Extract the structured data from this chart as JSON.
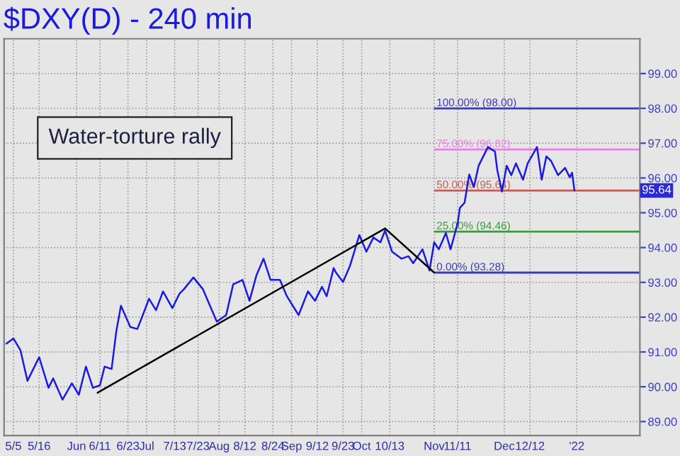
{
  "chart_data": {
    "type": "line",
    "title": "$DXY(D) - 240 min",
    "annotations": [
      "Water-torture rally",
      "95.64"
    ],
    "series": [
      {
        "color": "#1a1ae0",
        "x": [
          "2021-05-02",
          "2021-05-05",
          "2021-05-08",
          "2021-05-11",
          "2021-05-16",
          "2021-05-20",
          "2021-05-22",
          "2021-05-26",
          "2021-05-30",
          "2021-06-02",
          "2021-06-05",
          "2021-06-08",
          "2021-06-11",
          "2021-06-13",
          "2021-06-16",
          "2021-06-18",
          "2021-06-20",
          "2021-06-24",
          "2021-06-27",
          "2021-06-29",
          "2021-07-02",
          "2021-07-05",
          "2021-07-08",
          "2021-07-12",
          "2021-07-15",
          "2021-07-17",
          "2021-07-21",
          "2021-07-25",
          "2021-07-31",
          "2021-08-04",
          "2021-08-07",
          "2021-08-11",
          "2021-08-14",
          "2021-08-17",
          "2021-08-20",
          "2021-08-23",
          "2021-08-27",
          "2021-08-30",
          "2021-09-04",
          "2021-09-08",
          "2021-09-11",
          "2021-09-14",
          "2021-09-16",
          "2021-09-19",
          "2021-09-20",
          "2021-09-23",
          "2021-09-26",
          "2021-09-30",
          "2021-10-03",
          "2021-10-06",
          "2021-10-09",
          "2021-10-11",
          "2021-10-14",
          "2021-10-18",
          "2021-10-21",
          "2021-10-23",
          "2021-10-27",
          "2021-10-30",
          "2021-11-01",
          "2021-11-03",
          "2021-11-06",
          "2021-11-08",
          "2021-11-10",
          "2021-11-11",
          "2021-11-12",
          "2021-11-14",
          "2021-11-16",
          "2021-11-18",
          "2021-11-20",
          "2021-11-22",
          "2021-11-24",
          "2021-11-27",
          "2021-11-28",
          "2021-11-30",
          "2021-12-02",
          "2021-12-04",
          "2021-12-06",
          "2021-12-09",
          "2021-12-11",
          "2021-12-15",
          "2021-12-17",
          "2021-12-19",
          "2021-12-21",
          "2021-12-24",
          "2021-12-27",
          "2021-12-29",
          "2021-12-30",
          "2021-12-31"
        ],
        "values": [
          91.24,
          91.39,
          91.05,
          90.17,
          90.85,
          89.97,
          90.24,
          89.63,
          90.1,
          89.77,
          90.58,
          89.97,
          90.04,
          90.58,
          90.51,
          91.59,
          92.33,
          91.72,
          91.66,
          92.0,
          92.53,
          92.2,
          92.74,
          92.26,
          92.67,
          92.81,
          93.14,
          92.81,
          91.87,
          92.06,
          92.94,
          93.07,
          92.47,
          93.21,
          93.68,
          93.07,
          93.07,
          92.6,
          92.06,
          92.74,
          92.47,
          92.87,
          92.6,
          93.41,
          93.28,
          93.01,
          93.48,
          94.36,
          93.88,
          94.29,
          94.15,
          94.49,
          93.88,
          93.68,
          93.75,
          93.55,
          93.95,
          93.34,
          94.15,
          93.95,
          94.42,
          93.95,
          94.44,
          94.68,
          95.14,
          95.29,
          96.1,
          95.74,
          96.35,
          96.62,
          96.89,
          96.76,
          96.22,
          95.61,
          96.35,
          96.08,
          96.42,
          95.95,
          96.42,
          96.89,
          95.95,
          96.62,
          96.49,
          96.08,
          96.29,
          96.02,
          96.15,
          95.64
        ]
      },
      {
        "color": "#000000",
        "x": [
          "2021-06-10",
          "2021-10-11",
          "2021-11-01"
        ],
        "values": [
          89.83,
          94.55,
          93.28
        ]
      }
    ],
    "ref_lines": [
      {
        "axis": "y",
        "value": 98.0,
        "label": "100.00% (98.00)",
        "color": "#3c3cb0"
      },
      {
        "axis": "y",
        "value": 96.82,
        "label": "75.00% (96.82)",
        "color": "#f07ce8"
      },
      {
        "axis": "y",
        "value": 95.64,
        "label": "50.00% (95.64)",
        "color": "#c85a50"
      },
      {
        "axis": "y",
        "value": 94.46,
        "label": "25.00% (94.46)",
        "color": "#3a9a3a"
      },
      {
        "axis": "y",
        "value": 93.28,
        "label": "0.00% (93.28)",
        "color": "#3c3cb0"
      }
    ],
    "xlim": [
      "2021-05-01",
      "2022-01-28"
    ],
    "xticks": [
      {
        "value": "2021-05-05",
        "label": "5/5"
      },
      {
        "value": "2021-05-16",
        "label": "5/16"
      },
      {
        "value": "2021-06-01",
        "label": "Jun"
      },
      {
        "value": "2021-06-11",
        "label": "6/11"
      },
      {
        "value": "2021-06-23",
        "label": "6/23"
      },
      {
        "value": "2021-07-01",
        "label": "Jul"
      },
      {
        "value": "2021-07-13",
        "label": "7/13"
      },
      {
        "value": "2021-07-23",
        "label": "7/23"
      },
      {
        "value": "2021-08-01",
        "label": "Aug"
      },
      {
        "value": "2021-08-12",
        "label": "8/12"
      },
      {
        "value": "2021-08-24",
        "label": "8/24"
      },
      {
        "value": "2021-09-01",
        "label": "Sep"
      },
      {
        "value": "2021-09-12",
        "label": "9/12"
      },
      {
        "value": "2021-09-23",
        "label": "9/23"
      },
      {
        "value": "2021-10-01",
        "label": "Oct"
      },
      {
        "value": "2021-10-13",
        "label": "10/13"
      },
      {
        "value": "2021-11-01",
        "label": "Nov"
      },
      {
        "value": "2021-11-11",
        "label": "11/11"
      },
      {
        "value": "2021-12-01",
        "label": "Dec"
      },
      {
        "value": "2021-12-12",
        "label": "12/12"
      },
      {
        "value": "2022-01-01",
        "label": "'22"
      }
    ],
    "ylim": [
      88.6,
      100.0
    ],
    "yticks": [
      {
        "value": 89,
        "label": "89.00"
      },
      {
        "value": 90,
        "label": "90.00"
      },
      {
        "value": 91,
        "label": "91.00"
      },
      {
        "value": 92,
        "label": "92.00"
      },
      {
        "value": 93,
        "label": "93.00"
      },
      {
        "value": 94,
        "label": "94.00"
      },
      {
        "value": 95,
        "label": "95.00"
      },
      {
        "value": 96,
        "label": "96.00"
      },
      {
        "value": 97,
        "label": "97.00"
      },
      {
        "value": 98,
        "label": "98.00"
      },
      {
        "value": 99,
        "label": "99.00"
      }
    ],
    "grid": true,
    "line_style": "solid"
  }
}
